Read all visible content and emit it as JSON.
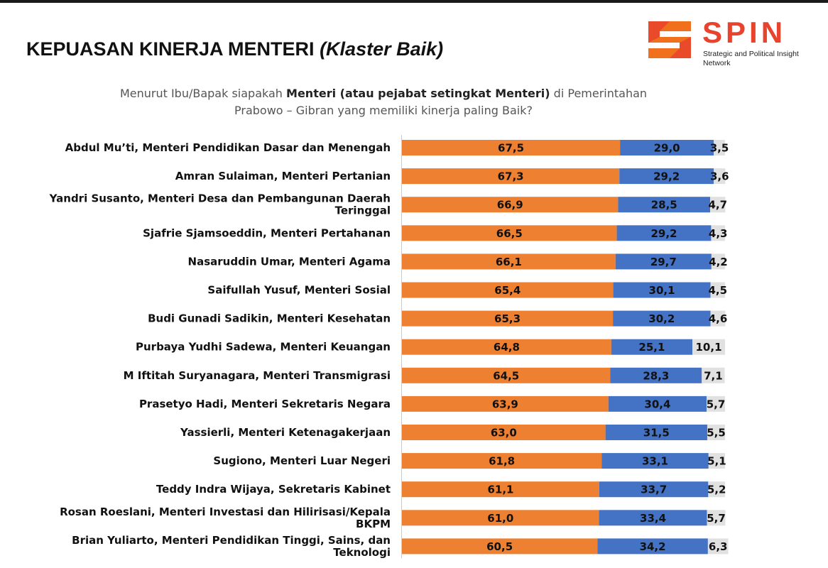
{
  "header": {
    "title_main": "KEPUASAN KINERJA MENTERI",
    "title_sub": "(Klaster Baik)",
    "question_prefix": "Menurut Ibu/Bapak siapakah",
    "question_bold": "Menteri (atau pejabat setingkat Menteri)",
    "question_suffix": "di Pemerintahan",
    "question_line2": "Prabowo – Gibran yang memiliki kinerja paling Baik?"
  },
  "logo": {
    "name": "SPIN",
    "tagline": "Strategic and Political Insight Network",
    "icon": "spin-s-logo-icon"
  },
  "colors": {
    "orange": "#ee8032",
    "blue": "#4472c4",
    "gray": "#e1e1e1",
    "logo_orange": "#f0701e",
    "logo_red": "#e8432c"
  },
  "chart_data": {
    "type": "bar",
    "orientation": "horizontal",
    "stacked": true,
    "categories": [
      "Abdul Mu’ti, Menteri Pendidikan Dasar dan Menengah",
      "Amran Sulaiman, Menteri Pertanian",
      "Yandri Susanto, Menteri Desa dan Pembangunan Daerah Teringgal",
      "Sjafrie Sjamsoeddin, Menteri Pertahanan",
      "Nasaruddin Umar, Menteri Agama",
      "Saifullah Yusuf, Menteri Sosial",
      "Budi Gunadi Sadikin, Menteri Kesehatan",
      "Purbaya Yudhi Sadewa, Menteri Keuangan",
      "M Iftitah Suryanagara, Menteri Transmigrasi",
      "Prasetyo Hadi, Menteri Sekretaris Negara",
      "Yassierli, Menteri Ketenagakerjaan",
      "Sugiono, Menteri Luar Negeri",
      "Teddy Indra Wijaya, Sekretaris Kabinet",
      "Rosan Roeslani, Menteri Investasi dan Hilirisasi/Kepala BKPM",
      "Brian Yuliarto, Menteri Pendidikan Tinggi, Sains, dan Teknologi"
    ],
    "label_lines": [
      [
        "Abdul Mu’ti, Menteri Pendidikan Dasar dan Menengah"
      ],
      [
        "Amran Sulaiman, Menteri Pertanian"
      ],
      [
        "Yandri Susanto, Menteri Desa dan Pembangunan Daerah",
        "Teringgal"
      ],
      [
        "Sjafrie Sjamsoeddin, Menteri Pertahanan"
      ],
      [
        "Nasaruddin Umar, Menteri Agama"
      ],
      [
        "Saifullah Yusuf, Menteri Sosial"
      ],
      [
        "Budi Gunadi Sadikin, Menteri Kesehatan"
      ],
      [
        "Purbaya Yudhi Sadewa, Menteri Keuangan"
      ],
      [
        "M Iftitah Suryanagara, Menteri Transmigrasi"
      ],
      [
        "Prasetyo Hadi, Menteri Sekretaris Negara"
      ],
      [
        "Yassierli, Menteri Ketenagakerjaan"
      ],
      [
        "Sugiono, Menteri Luar Negeri"
      ],
      [
        "Teddy Indra Wijaya, Sekretaris Kabinet"
      ],
      [
        "Rosan Roeslani, Menteri Investasi dan Hilirisasi/Kepala",
        "BKPM"
      ],
      [
        "Brian Yuliarto, Menteri Pendidikan Tinggi, Sains, dan",
        "Teknologi"
      ]
    ],
    "series": [
      {
        "values": [
          67.5,
          67.3,
          66.9,
          66.5,
          66.1,
          65.4,
          65.3,
          64.8,
          64.5,
          63.9,
          63.0,
          61.8,
          61.1,
          61.0,
          60.5
        ],
        "labels": [
          "67,5",
          "67,3",
          "66,9",
          "66,5",
          "66,1",
          "65,4",
          "65,3",
          "64,8",
          "64,5",
          "63,9",
          "63,0",
          "61,8",
          "61,1",
          "61,0",
          "60,5"
        ],
        "color": "#ee8032"
      },
      {
        "values": [
          29.0,
          29.2,
          28.5,
          29.2,
          29.7,
          30.1,
          30.2,
          25.1,
          28.3,
          30.4,
          31.5,
          33.1,
          33.7,
          33.4,
          34.2
        ],
        "labels": [
          "29,0",
          "29,2",
          "28,5",
          "29,2",
          "29,7",
          "30,1",
          "30,2",
          "25,1",
          "28,3",
          "30,4",
          "31,5",
          "33,1",
          "33,7",
          "33,4",
          "34,2"
        ],
        "color": "#4472c4"
      },
      {
        "values": [
          3.5,
          3.6,
          4.7,
          4.3,
          4.2,
          4.5,
          4.6,
          10.1,
          7.1,
          5.7,
          5.5,
          5.1,
          5.2,
          5.7,
          6.3
        ],
        "labels": [
          "3,5",
          "3,6",
          "4,7",
          "4,3",
          "4,2",
          "4,5",
          "4,6",
          "10,1",
          "7,1",
          "5,7",
          "5,5",
          "5,1",
          "5,2",
          "5,7",
          "6,3"
        ],
        "color": "#e1e1e1"
      }
    ],
    "xlim": [
      0,
      100
    ],
    "grid": false,
    "legend": "none"
  }
}
